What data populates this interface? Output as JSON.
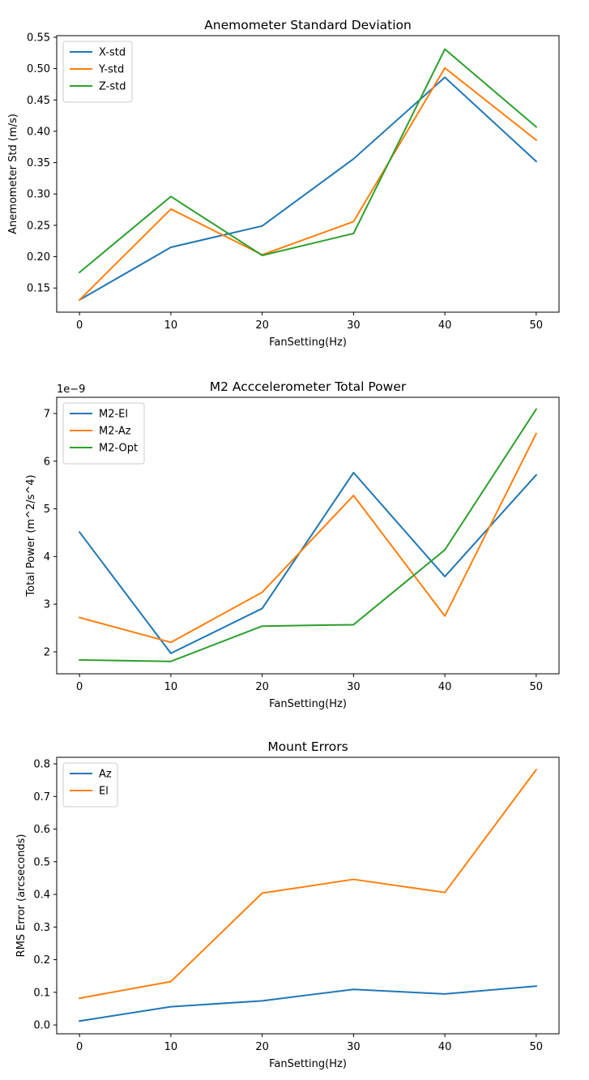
{
  "chart_data": [
    {
      "type": "line",
      "title": "Anemometer Standard Deviation",
      "xlabel": "FanSetting(Hz)",
      "ylabel": "Anemometer Std (m/s)",
      "x": [
        0,
        10,
        20,
        30,
        40,
        50
      ],
      "xlim": [
        -2.5,
        52.5
      ],
      "ylim": [
        0.1115,
        0.5525
      ],
      "xticks": [
        "0",
        "10",
        "20",
        "30",
        "40",
        "50"
      ],
      "yticks": [
        "0.15",
        "0.20",
        "0.25",
        "0.30",
        "0.35",
        "0.40",
        "0.45",
        "0.50",
        "0.55"
      ],
      "ytick_values": [
        0.15,
        0.2,
        0.25,
        0.3,
        0.35,
        0.4,
        0.45,
        0.5,
        0.55
      ],
      "offset_text": "",
      "legend": "top-left",
      "grid": false,
      "series": [
        {
          "name": "X-std",
          "color": "#1f77b4",
          "values": [
            0.131,
            0.215,
            0.249,
            0.356,
            0.486,
            0.352
          ]
        },
        {
          "name": "Y-std",
          "color": "#ff7f0e",
          "values": [
            0.131,
            0.276,
            0.203,
            0.256,
            0.501,
            0.386
          ]
        },
        {
          "name": "Z-std",
          "color": "#2ca02c",
          "values": [
            0.175,
            0.296,
            0.202,
            0.237,
            0.531,
            0.407
          ]
        }
      ]
    },
    {
      "type": "line",
      "title": "M2 Acccelerometer Total Power",
      "xlabel": "FanSetting(Hz)",
      "ylabel": "Total Power (m^2/s^4)",
      "x": [
        0,
        10,
        20,
        30,
        40,
        50
      ],
      "xlim": [
        -2.5,
        52.5
      ],
      "ylim": [
        1.54,
        7.34
      ],
      "xticks": [
        "0",
        "10",
        "20",
        "30",
        "40",
        "50"
      ],
      "yticks": [
        "2",
        "3",
        "4",
        "5",
        "6",
        "7"
      ],
      "ytick_values": [
        2,
        3,
        4,
        5,
        6,
        7
      ],
      "offset_text": "1e−9",
      "legend": "top-left",
      "grid": false,
      "series": [
        {
          "name": "M2-El",
          "color": "#1f77b4",
          "values": [
            4.51,
            1.97,
            2.91,
            5.76,
            3.58,
            5.71
          ]
        },
        {
          "name": "M2-Az",
          "color": "#ff7f0e",
          "values": [
            2.72,
            2.2,
            3.25,
            5.28,
            2.75,
            6.58
          ]
        },
        {
          "name": "M2-Opt",
          "color": "#2ca02c",
          "values": [
            1.83,
            1.8,
            2.54,
            2.57,
            4.14,
            7.09
          ]
        }
      ]
    },
    {
      "type": "line",
      "title": "Mount Errors",
      "xlabel": "FanSetting(Hz)",
      "ylabel": "RMS Error (arcseconds)",
      "x": [
        0,
        10,
        20,
        30,
        40,
        50
      ],
      "xlim": [
        -2.5,
        52.5
      ],
      "ylim": [
        -0.027,
        0.82
      ],
      "xticks": [
        "0",
        "10",
        "20",
        "30",
        "40",
        "50"
      ],
      "yticks": [
        "0.0",
        "0.1",
        "0.2",
        "0.3",
        "0.4",
        "0.5",
        "0.6",
        "0.7",
        "0.8"
      ],
      "ytick_values": [
        0.0,
        0.1,
        0.2,
        0.3,
        0.4,
        0.5,
        0.6,
        0.7,
        0.8
      ],
      "offset_text": "",
      "legend": "top-left",
      "grid": false,
      "series": [
        {
          "name": "Az",
          "color": "#1f77b4",
          "values": [
            0.012,
            0.056,
            0.074,
            0.109,
            0.095,
            0.119
          ]
        },
        {
          "name": "El",
          "color": "#ff7f0e",
          "values": [
            0.082,
            0.133,
            0.404,
            0.446,
            0.406,
            0.782
          ]
        }
      ]
    }
  ]
}
